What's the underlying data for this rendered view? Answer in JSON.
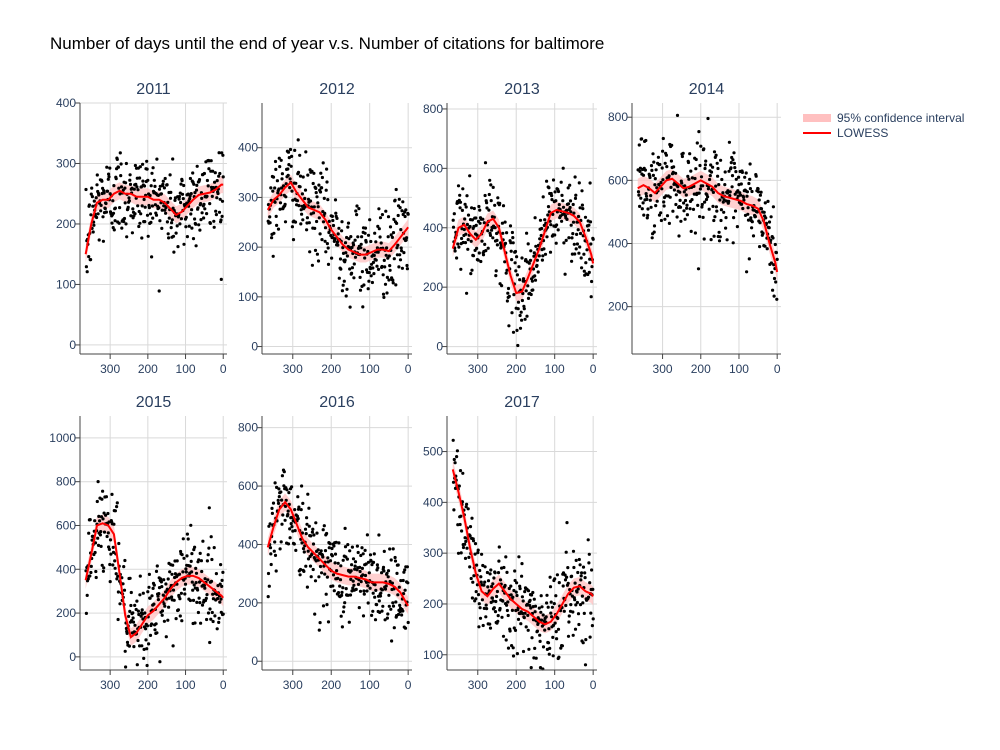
{
  "page": {
    "title": "Number of days until the end of year v.s. Number of citations for baltimore"
  },
  "legend": {
    "position": "top-right",
    "items": [
      {
        "label": "95% confidence interval",
        "color": "#ffc0c0"
      },
      {
        "label": "LOWESS",
        "color": "#ff0000"
      }
    ]
  },
  "chart_data": [
    {
      "type": "scatter",
      "title": "2011",
      "xlim": [
        380,
        -10
      ],
      "ylim": [
        -15,
        400
      ],
      "xticks": [
        300,
        200,
        100,
        0
      ],
      "yticks": [
        0,
        100,
        200,
        300,
        400
      ],
      "lowess": [
        [
          365,
          150
        ],
        [
          350,
          200
        ],
        [
          335,
          235
        ],
        [
          320,
          240
        ],
        [
          305,
          240
        ],
        [
          290,
          250
        ],
        [
          275,
          255
        ],
        [
          260,
          250
        ],
        [
          245,
          250
        ],
        [
          230,
          245
        ],
        [
          215,
          245
        ],
        [
          200,
          245
        ],
        [
          185,
          240
        ],
        [
          170,
          240
        ],
        [
          155,
          235
        ],
        [
          140,
          225
        ],
        [
          125,
          215
        ],
        [
          110,
          220
        ],
        [
          95,
          230
        ],
        [
          80,
          240
        ],
        [
          65,
          248
        ],
        [
          50,
          250
        ],
        [
          35,
          252
        ],
        [
          20,
          257
        ],
        [
          5,
          265
        ],
        [
          0,
          265
        ]
      ],
      "ci_halfwidth": 14
    },
    {
      "type": "scatter",
      "title": "2012",
      "xlim": [
        380,
        -10
      ],
      "ylim": [
        -15,
        490
      ],
      "xticks": [
        300,
        200,
        100,
        0
      ],
      "yticks": [
        0,
        100,
        200,
        300,
        400
      ],
      "lowess": [
        [
          365,
          275
        ],
        [
          350,
          295
        ],
        [
          335,
          305
        ],
        [
          320,
          320
        ],
        [
          305,
          330
        ],
        [
          290,
          310
        ],
        [
          275,
          295
        ],
        [
          260,
          280
        ],
        [
          245,
          275
        ],
        [
          230,
          270
        ],
        [
          215,
          255
        ],
        [
          200,
          235
        ],
        [
          185,
          220
        ],
        [
          170,
          205
        ],
        [
          155,
          195
        ],
        [
          140,
          190
        ],
        [
          125,
          185
        ],
        [
          110,
          185
        ],
        [
          95,
          190
        ],
        [
          80,
          195
        ],
        [
          65,
          195
        ],
        [
          50,
          192
        ],
        [
          35,
          205
        ],
        [
          20,
          220
        ],
        [
          5,
          235
        ],
        [
          0,
          240
        ]
      ],
      "ci_halfwidth": 16
    },
    {
      "type": "scatter",
      "title": "2013",
      "xlim": [
        380,
        -10
      ],
      "ylim": [
        -25,
        820
      ],
      "xticks": [
        300,
        200,
        100,
        0
      ],
      "yticks": [
        0,
        200,
        400,
        600,
        800
      ],
      "lowess": [
        [
          365,
          330
        ],
        [
          350,
          400
        ],
        [
          335,
          410
        ],
        [
          320,
          380
        ],
        [
          305,
          360
        ],
        [
          290,
          380
        ],
        [
          275,
          420
        ],
        [
          260,
          430
        ],
        [
          245,
          400
        ],
        [
          230,
          320
        ],
        [
          215,
          240
        ],
        [
          200,
          180
        ],
        [
          185,
          185
        ],
        [
          170,
          230
        ],
        [
          155,
          280
        ],
        [
          140,
          330
        ],
        [
          125,
          390
        ],
        [
          110,
          450
        ],
        [
          95,
          460
        ],
        [
          80,
          455
        ],
        [
          65,
          450
        ],
        [
          50,
          440
        ],
        [
          35,
          420
        ],
        [
          20,
          370
        ],
        [
          5,
          310
        ],
        [
          0,
          280
        ]
      ],
      "ci_halfwidth": 28
    },
    {
      "type": "scatter",
      "title": "2014",
      "xlim": [
        380,
        -10
      ],
      "ylim": [
        50,
        845
      ],
      "xticks": [
        300,
        200,
        100,
        0
      ],
      "yticks": [
        200,
        400,
        600,
        800
      ],
      "lowess": [
        [
          365,
          575
        ],
        [
          350,
          585
        ],
        [
          335,
          575
        ],
        [
          320,
          560
        ],
        [
          305,
          580
        ],
        [
          290,
          600
        ],
        [
          275,
          605
        ],
        [
          260,
          590
        ],
        [
          245,
          575
        ],
        [
          230,
          580
        ],
        [
          215,
          590
        ],
        [
          200,
          600
        ],
        [
          185,
          590
        ],
        [
          170,
          580
        ],
        [
          155,
          560
        ],
        [
          140,
          550
        ],
        [
          125,
          545
        ],
        [
          110,
          540
        ],
        [
          95,
          535
        ],
        [
          80,
          525
        ],
        [
          65,
          520
        ],
        [
          50,
          510
        ],
        [
          35,
          470
        ],
        [
          20,
          400
        ],
        [
          5,
          340
        ],
        [
          0,
          310
        ]
      ],
      "ci_halfwidth": 30
    },
    {
      "type": "scatter",
      "title": "2015",
      "xlim": [
        380,
        -10
      ],
      "ylim": [
        -60,
        1100
      ],
      "xticks": [
        300,
        200,
        100,
        0
      ],
      "yticks": [
        0,
        200,
        400,
        600,
        800,
        1000
      ],
      "lowess": [
        [
          365,
          350
        ],
        [
          350,
          470
        ],
        [
          335,
          600
        ],
        [
          320,
          610
        ],
        [
          305,
          600
        ],
        [
          290,
          560
        ],
        [
          275,
          380
        ],
        [
          260,
          190
        ],
        [
          245,
          90
        ],
        [
          230,
          110
        ],
        [
          215,
          150
        ],
        [
          200,
          190
        ],
        [
          185,
          210
        ],
        [
          170,
          240
        ],
        [
          155,
          270
        ],
        [
          140,
          310
        ],
        [
          125,
          340
        ],
        [
          110,
          360
        ],
        [
          95,
          370
        ],
        [
          80,
          370
        ],
        [
          65,
          360
        ],
        [
          50,
          340
        ],
        [
          35,
          320
        ],
        [
          20,
          300
        ],
        [
          5,
          280
        ],
        [
          0,
          270
        ]
      ],
      "ci_halfwidth": 40
    },
    {
      "type": "scatter",
      "title": "2016",
      "xlim": [
        380,
        -10
      ],
      "ylim": [
        -30,
        840
      ],
      "xticks": [
        300,
        200,
        100,
        0
      ],
      "yticks": [
        0,
        200,
        400,
        600,
        800
      ],
      "lowess": [
        [
          365,
          390
        ],
        [
          350,
          460
        ],
        [
          335,
          520
        ],
        [
          320,
          545
        ],
        [
          305,
          520
        ],
        [
          290,
          470
        ],
        [
          275,
          420
        ],
        [
          260,
          390
        ],
        [
          245,
          370
        ],
        [
          230,
          350
        ],
        [
          215,
          330
        ],
        [
          200,
          310
        ],
        [
          185,
          300
        ],
        [
          170,
          295
        ],
        [
          155,
          290
        ],
        [
          140,
          290
        ],
        [
          125,
          285
        ],
        [
          110,
          280
        ],
        [
          95,
          270
        ],
        [
          80,
          270
        ],
        [
          65,
          270
        ],
        [
          50,
          265
        ],
        [
          35,
          255
        ],
        [
          20,
          235
        ],
        [
          5,
          200
        ],
        [
          0,
          190
        ]
      ],
      "ci_halfwidth": 30
    },
    {
      "type": "scatter",
      "title": "2017",
      "xlim": [
        380,
        -10
      ],
      "ylim": [
        70,
        570
      ],
      "xticks": [
        300,
        200,
        100,
        0
      ],
      "yticks": [
        100,
        200,
        300,
        400,
        500
      ],
      "lowess": [
        [
          365,
          465
        ],
        [
          350,
          420
        ],
        [
          335,
          370
        ],
        [
          320,
          310
        ],
        [
          305,
          260
        ],
        [
          290,
          225
        ],
        [
          275,
          215
        ],
        [
          260,
          230
        ],
        [
          245,
          240
        ],
        [
          230,
          225
        ],
        [
          215,
          210
        ],
        [
          200,
          200
        ],
        [
          185,
          190
        ],
        [
          170,
          185
        ],
        [
          155,
          175
        ],
        [
          140,
          165
        ],
        [
          125,
          160
        ],
        [
          110,
          165
        ],
        [
          95,
          180
        ],
        [
          80,
          200
        ],
        [
          65,
          220
        ],
        [
          50,
          232
        ],
        [
          35,
          235
        ],
        [
          20,
          225
        ],
        [
          5,
          220
        ],
        [
          0,
          215
        ]
      ],
      "ci_halfwidth": 18
    }
  ]
}
